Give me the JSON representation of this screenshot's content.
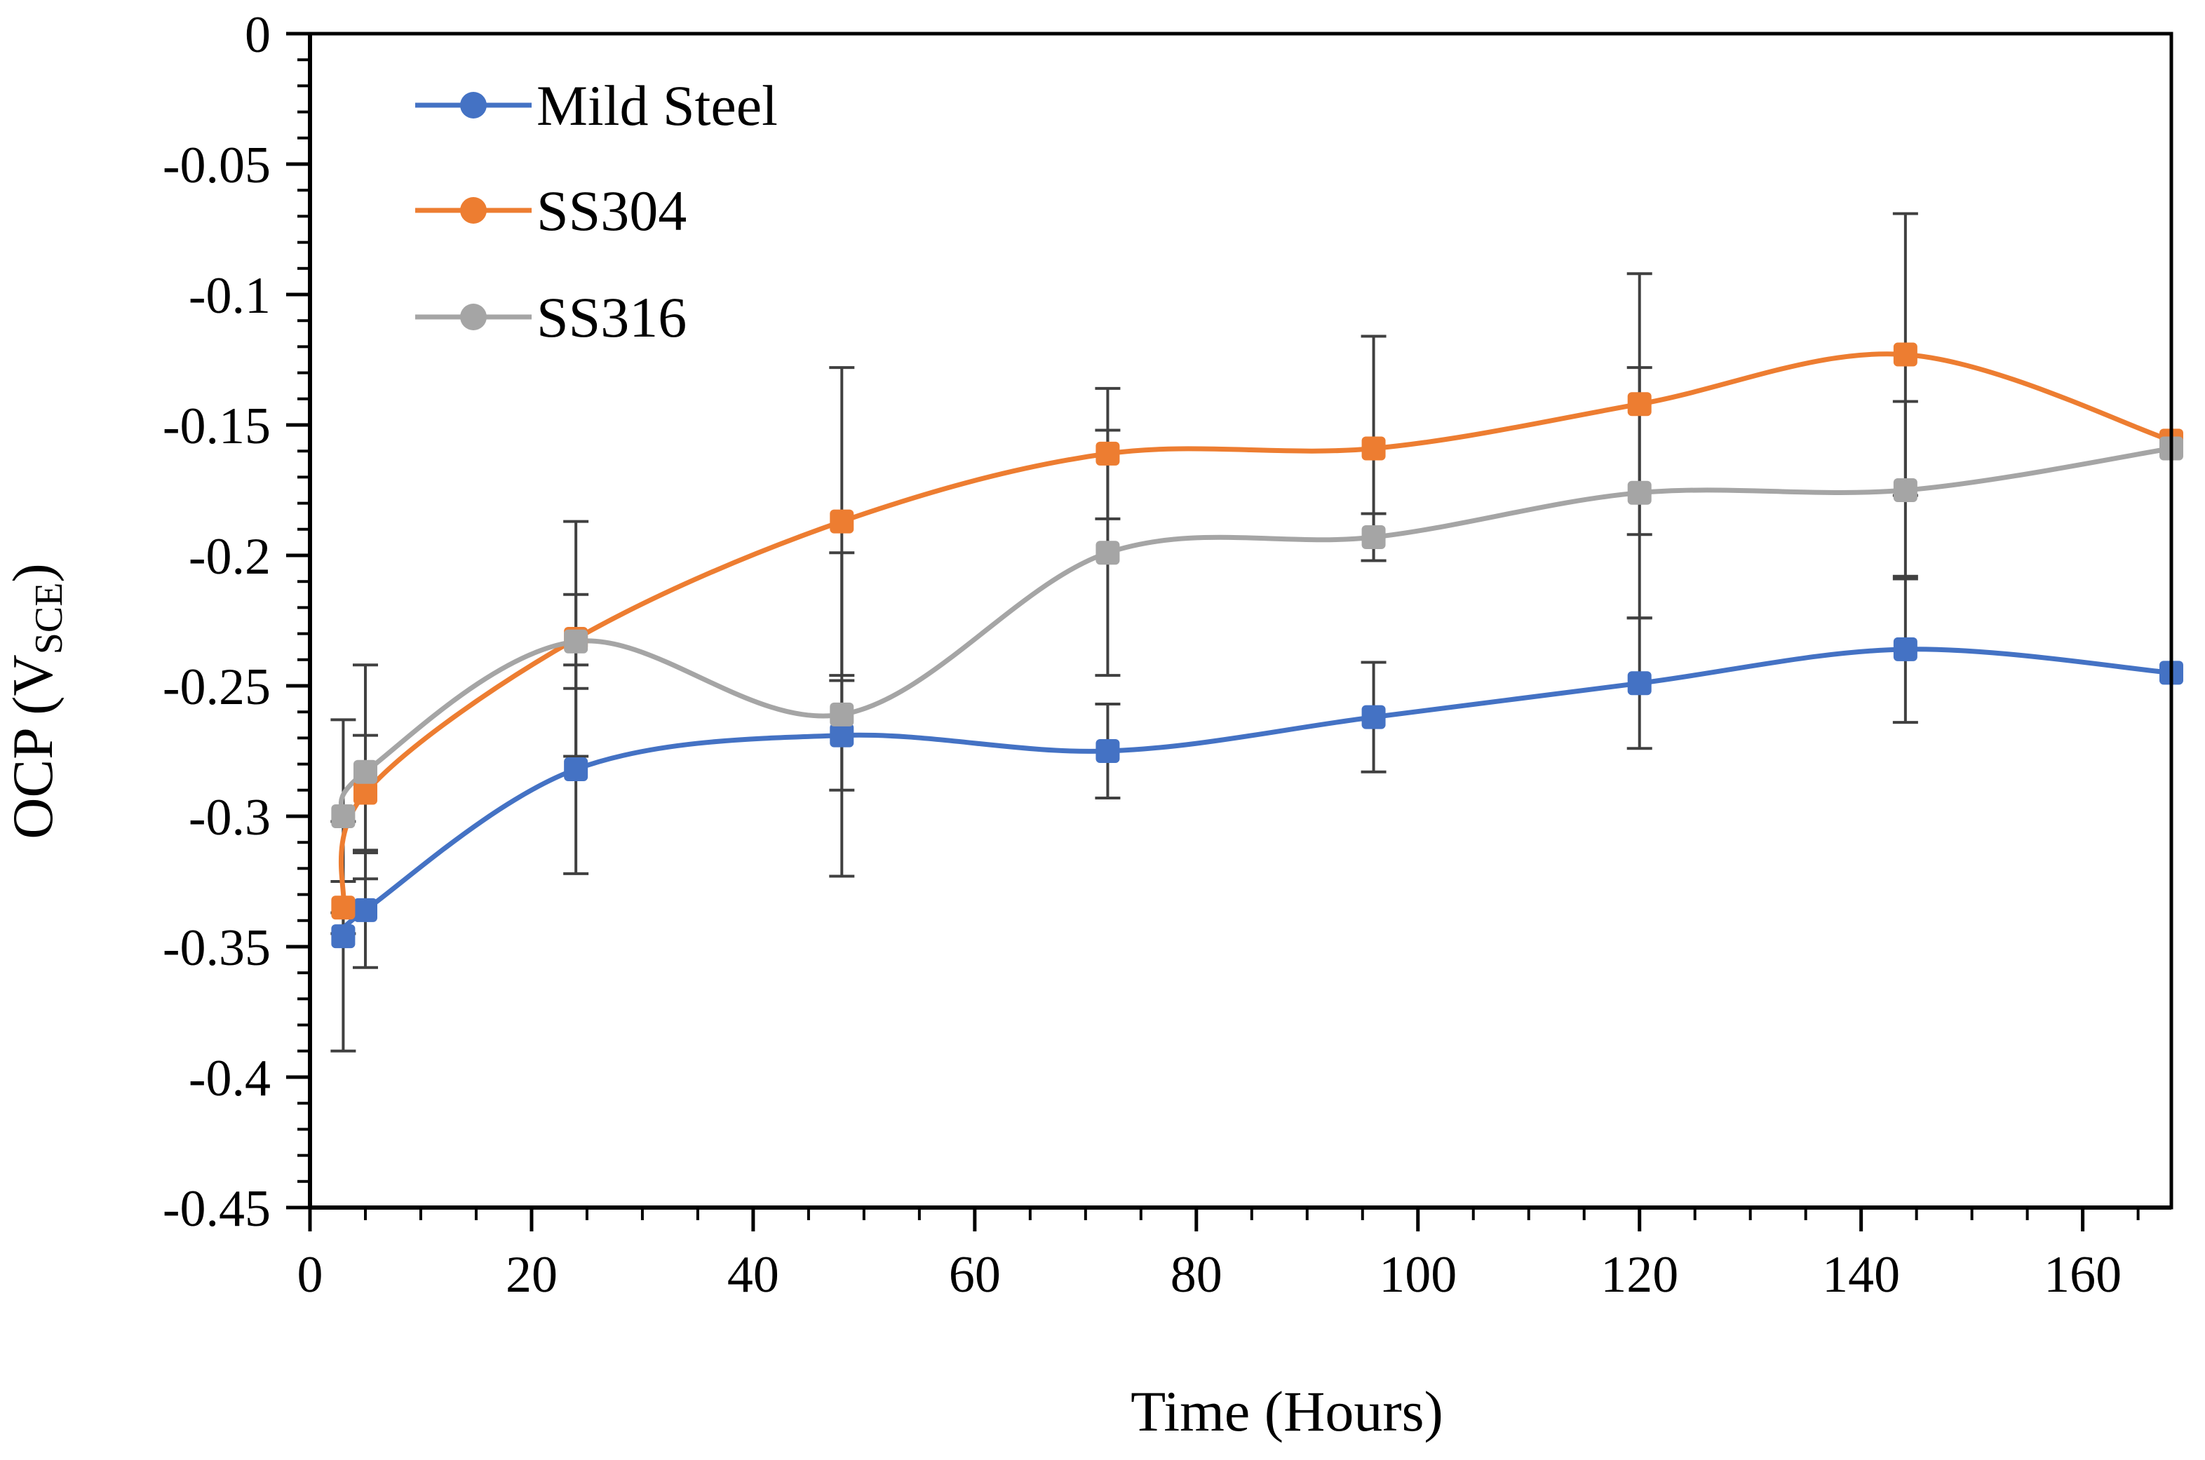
{
  "chart_data": {
    "type": "line",
    "title": "",
    "xlabel": "Time (Hours)",
    "ylabel": {
      "main": "OCP (V",
      "sub": "SCE",
      "close": ")"
    },
    "xlim": [
      0,
      168
    ],
    "ylim": [
      -0.45,
      0
    ],
    "x_ticks": [
      0,
      20,
      40,
      60,
      80,
      100,
      120,
      140,
      160
    ],
    "x_tick_labels": [
      "0",
      "20",
      "40",
      "60",
      "80",
      "100",
      "120",
      "140",
      "160"
    ],
    "y_ticks": [
      0,
      -0.05,
      -0.1,
      -0.15,
      -0.2,
      -0.25,
      -0.3,
      -0.35,
      -0.4,
      -0.45
    ],
    "y_tick_labels": [
      "0",
      "-0.05",
      "-0.1",
      "-0.15",
      "-0.2",
      "-0.25",
      "-0.3",
      "-0.35",
      "-0.4",
      "-0.45"
    ],
    "x_minor_step": 5,
    "y_minor_step": 0.01,
    "grid": false,
    "legend_position": "top-left",
    "series": [
      {
        "name": "Mild Steel",
        "color": "#4472c4",
        "x": [
          3,
          5,
          24,
          48,
          72,
          96,
          120,
          144,
          168
        ],
        "y": [
          -0.346,
          -0.336,
          -0.282,
          -0.269,
          -0.275,
          -0.262,
          -0.249,
          -0.236,
          -0.245
        ],
        "err": [
          0.044,
          0.022,
          0.04,
          0.021,
          0.018,
          0.021,
          0.025,
          0.028,
          0.0
        ]
      },
      {
        "name": "SS304",
        "color": "#ed7d31",
        "x": [
          3,
          5,
          24,
          48,
          72,
          96,
          120,
          144,
          168
        ],
        "y": [
          -0.335,
          -0.291,
          -0.232,
          -0.187,
          -0.161,
          -0.159,
          -0.142,
          -0.123,
          -0.156
        ],
        "err": [
          0.01,
          0.022,
          0.045,
          0.059,
          0.025,
          0.043,
          0.05,
          0.054,
          0.0
        ]
      },
      {
        "name": "SS316",
        "color": "#a5a5a5",
        "x": [
          3,
          5,
          24,
          48,
          72,
          96,
          120,
          144,
          168
        ],
        "y": [
          -0.3,
          -0.283,
          -0.233,
          -0.261,
          -0.199,
          -0.193,
          -0.176,
          -0.175,
          -0.159
        ],
        "err": [
          0.037,
          0.041,
          0.018,
          0.062,
          0.047,
          0.009,
          0.048,
          0.034,
          0.0
        ]
      }
    ]
  }
}
